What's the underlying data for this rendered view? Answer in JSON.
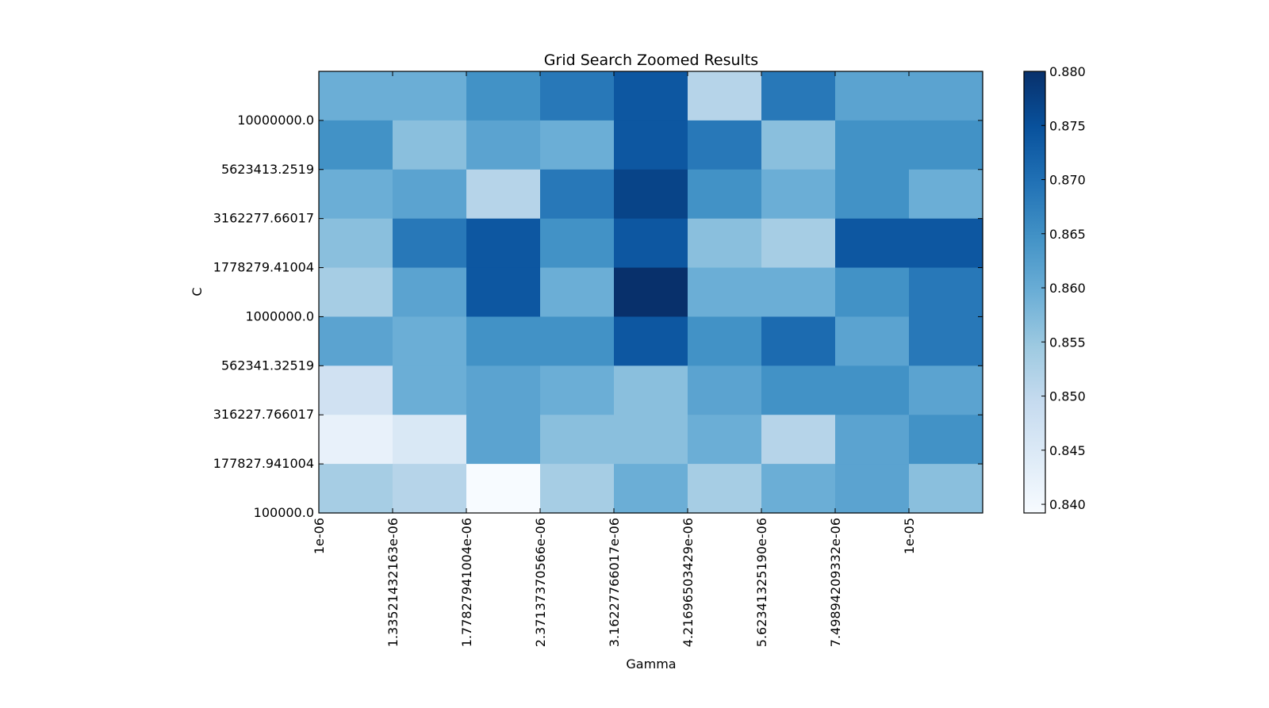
{
  "chart_data": {
    "type": "heatmap",
    "title": "Grid Search Zoomed Results",
    "xlabel": "Gamma",
    "ylabel": "C",
    "x_tick_labels": [
      "1e-06",
      "1.33521432163e-06",
      "1.77827941004e-06",
      "2.37137370566e-06",
      "3.16227766017e-06",
      "4.21696503429e-06",
      "5.62341325190e-06",
      "7.49894209332e-06",
      "1e-05"
    ],
    "y_tick_labels": [
      "100000.0",
      "177827.941004",
      "316227.766017",
      "562341.32519",
      "1000000.0",
      "1778279.41004",
      "3162277.66017",
      "5623413.2519",
      "10000000.0"
    ],
    "rows_top_to_bottom": [
      [
        0.86,
        0.86,
        0.865,
        0.869,
        0.874,
        0.852,
        0.869,
        0.862,
        0.862
      ],
      [
        0.865,
        0.857,
        0.862,
        0.86,
        0.874,
        0.869,
        0.857,
        0.865,
        0.865
      ],
      [
        0.86,
        0.862,
        0.852,
        0.869,
        0.877,
        0.865,
        0.86,
        0.865,
        0.86
      ],
      [
        0.857,
        0.869,
        0.874,
        0.865,
        0.874,
        0.857,
        0.854,
        0.874,
        0.874
      ],
      [
        0.854,
        0.862,
        0.874,
        0.86,
        0.88,
        0.86,
        0.86,
        0.865,
        0.869
      ],
      [
        0.862,
        0.86,
        0.865,
        0.865,
        0.874,
        0.865,
        0.871,
        0.862,
        0.869
      ],
      [
        0.848,
        0.86,
        0.862,
        0.86,
        0.857,
        0.862,
        0.865,
        0.865,
        0.862
      ],
      [
        0.843,
        0.846,
        0.862,
        0.857,
        0.857,
        0.86,
        0.852,
        0.862,
        0.865
      ],
      [
        0.854,
        0.852,
        0.84,
        0.854,
        0.86,
        0.854,
        0.86,
        0.862,
        0.857
      ]
    ],
    "colorbar": {
      "min": 0.84,
      "max": 0.88,
      "ticks": [
        "0.840",
        "0.845",
        "0.850",
        "0.855",
        "0.860",
        "0.865",
        "0.870",
        "0.875",
        "0.880"
      ]
    },
    "colormap": "Blues",
    "colormap_stops": [
      "#f7fbff",
      "#deebf7",
      "#c6dbef",
      "#9ecae1",
      "#6baed6",
      "#4292c6",
      "#2171b5",
      "#08519c",
      "#08306b"
    ]
  }
}
